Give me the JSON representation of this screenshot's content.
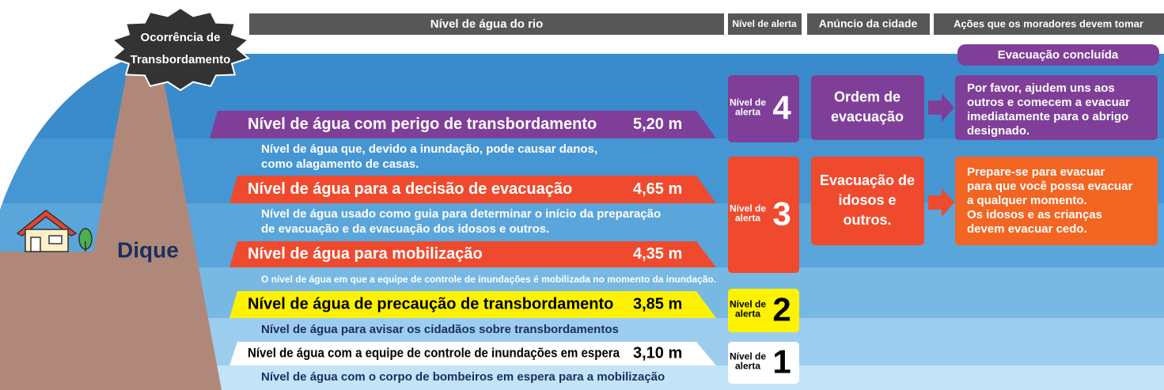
{
  "headers": {
    "river_level": "Nível de água do rio",
    "alert_level": "Nível de alerta",
    "city_announcement": "Anúncio da cidade",
    "resident_actions": "Ações que os moradores devem tomar"
  },
  "overflow": [
    "Ocorrência de",
    "Transbordamento"
  ],
  "evacuation_completed": "Evacuação concluída",
  "dike": "Dique",
  "levels": [
    {
      "label": "Nível de água com perigo de transbordamento",
      "height": "5,20 m",
      "description": [
        "Nível de água que, devido a inundação, pode causar danos,",
        "como alagamento de casas."
      ]
    },
    {
      "label": "Nível de água para a decisão de evacuação",
      "height": "4,65 m",
      "description": [
        "Nível de água usado como guia para determinar o início da preparação",
        "de evacuação e da evacuação dos idosos e outros."
      ]
    },
    {
      "label": "Nível de água para mobilização",
      "height": "4,35 m",
      "description": [
        "O nível de água em que a equipe de controle de inundações é mobilizada no momento da inundação."
      ]
    },
    {
      "label": "Nível de água de precaução de transbordamento",
      "height": "3,85 m",
      "description": [
        "Nível de água para avisar os cidadãos sobre transbordamentos"
      ]
    },
    {
      "label": "Nível de água com a equipe de controle de inundações em espera",
      "height": "3,10 m",
      "description": [
        "Nível de água com o corpo de bombeiros em espera para a mobilização"
      ]
    }
  ],
  "alerts": [
    {
      "prefix": [
        "Nível de",
        "alerta"
      ],
      "number": "4"
    },
    {
      "prefix": [
        "Nível de",
        "alerta"
      ],
      "number": "3"
    },
    {
      "prefix": [
        "Nível de",
        "alerta"
      ],
      "number": "2"
    },
    {
      "prefix": [
        "Nível de",
        "alerta"
      ],
      "number": "1"
    }
  ],
  "announcements": [
    {
      "text": [
        "Ordem de",
        "evacuação"
      ]
    },
    {
      "text": [
        "Evacuação de",
        "idosos e",
        "outros."
      ]
    }
  ],
  "actions": [
    {
      "text": [
        "Por favor, ajudem uns aos",
        "outros e comecem a evacuar",
        "imediatamente para o abrigo",
        "designado."
      ]
    },
    {
      "text": [
        "Prepare-se para evacuar",
        "para que você possa evacuar",
        "a qualquer momento.",
        "Os idosos e as crianças",
        "devem evacuar cedo."
      ]
    }
  ]
}
